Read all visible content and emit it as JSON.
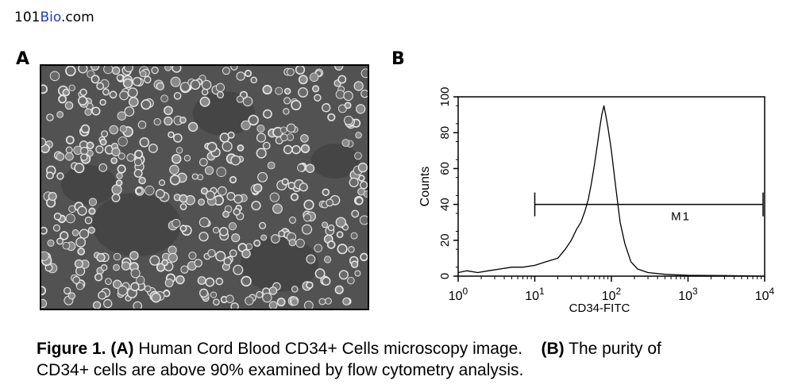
{
  "header": {
    "brand_part1": "101",
    "brand_part2": "Bio",
    "brand_part3": ".com"
  },
  "panels": {
    "a_label": "A",
    "b_label": "B"
  },
  "chart_data": {
    "type": "line",
    "xlabel": "CD34-FITC",
    "ylabel": "Counts",
    "xscale": "log",
    "xlim": [
      1,
      10000
    ],
    "ylim": [
      0,
      100
    ],
    "x_ticks": [
      {
        "base": "10",
        "exp": "0",
        "value": 1
      },
      {
        "base": "10",
        "exp": "1",
        "value": 10
      },
      {
        "base": "10",
        "exp": "2",
        "value": 100
      },
      {
        "base": "10",
        "exp": "3",
        "value": 1000
      },
      {
        "base": "10",
        "exp": "4",
        "value": 10000
      }
    ],
    "y_ticks": [
      "0",
      "20",
      "40",
      "60",
      "80",
      "100"
    ],
    "marker": {
      "label": "M1",
      "x_start": 10,
      "x_end": 10000,
      "y": 40
    },
    "series": [
      {
        "color": "#000000",
        "points": [
          [
            1.0,
            2
          ],
          [
            1.3,
            3
          ],
          [
            1.8,
            2
          ],
          [
            2.5,
            3
          ],
          [
            3.5,
            4
          ],
          [
            5,
            5
          ],
          [
            7,
            5
          ],
          [
            10,
            6
          ],
          [
            14,
            8
          ],
          [
            20,
            10
          ],
          [
            25,
            15
          ],
          [
            30,
            20
          ],
          [
            35,
            26
          ],
          [
            40,
            30
          ],
          [
            45,
            36
          ],
          [
            50,
            43
          ],
          [
            55,
            52
          ],
          [
            60,
            62
          ],
          [
            65,
            72
          ],
          [
            70,
            82
          ],
          [
            75,
            90
          ],
          [
            80,
            95
          ],
          [
            85,
            89
          ],
          [
            90,
            83
          ],
          [
            100,
            70
          ],
          [
            110,
            55
          ],
          [
            120,
            42
          ],
          [
            130,
            30
          ],
          [
            150,
            18
          ],
          [
            180,
            8
          ],
          [
            220,
            4
          ],
          [
            300,
            2
          ],
          [
            500,
            1
          ],
          [
            1000,
            0.5
          ],
          [
            3000,
            0.3
          ],
          [
            10000,
            0
          ]
        ]
      }
    ]
  },
  "caption": {
    "fig_label": "Figure 1.",
    "a_tag": "(A)",
    "a_text": " Human Cord Blood CD34+ Cells microscopy image.",
    "b_tag": "(B)",
    "b_text_line1": " The purity of",
    "line2": "CD34+ cells are above 90% examined by flow cytometry analysis."
  }
}
